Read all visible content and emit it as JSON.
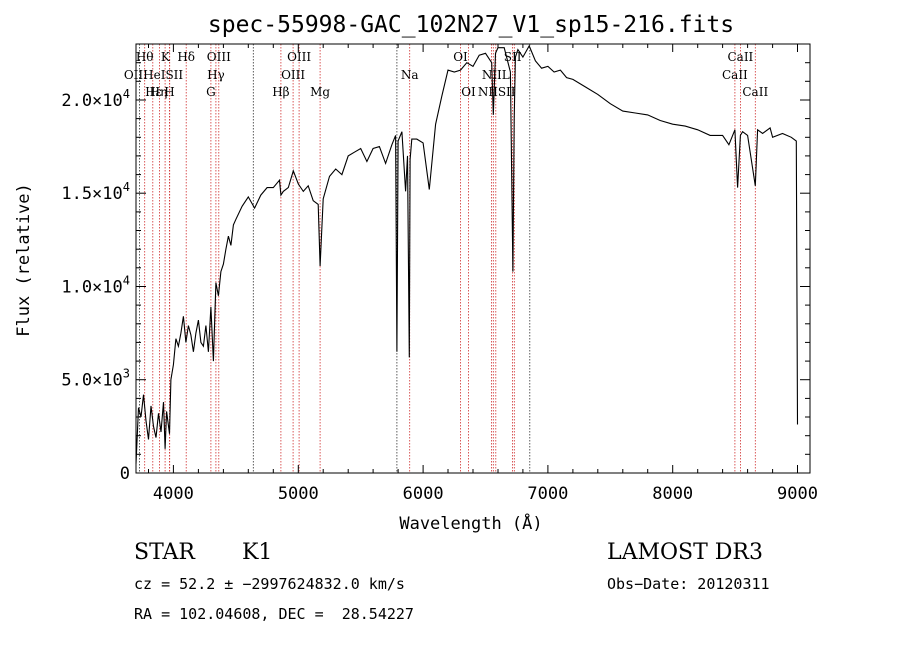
{
  "chart_data": {
    "type": "line",
    "title": "spec-55998-GAC_102N27_V1_sp15-216.fits",
    "xlabel": "Wavelength (Å)",
    "ylabel": "Flux (relative)",
    "xlim": [
      3700,
      9100
    ],
    "ylim": [
      0,
      23000
    ],
    "x_ticks": [
      {
        "value": 4000,
        "label": "4000"
      },
      {
        "value": 5000,
        "label": "5000"
      },
      {
        "value": 6000,
        "label": "6000"
      },
      {
        "value": 7000,
        "label": "7000"
      },
      {
        "value": 8000,
        "label": "8000"
      },
      {
        "value": 9000,
        "label": "9000"
      }
    ],
    "y_ticks": [
      {
        "value": 0,
        "mant": "0",
        "exp": ""
      },
      {
        "value": 5000,
        "mant": "5.0×10",
        "exp": "3"
      },
      {
        "value": 10000,
        "mant": "1.0×10",
        "exp": "4"
      },
      {
        "value": 15000,
        "mant": "1.5×10",
        "exp": "4"
      },
      {
        "value": 20000,
        "mant": "2.0×10",
        "exp": "4"
      }
    ],
    "series": [
      {
        "name": "spectrum",
        "x": [
          3700,
          3720,
          3740,
          3760,
          3780,
          3800,
          3820,
          3840,
          3860,
          3880,
          3900,
          3920,
          3933,
          3945,
          3968,
          3980,
          4000,
          4020,
          4040,
          4060,
          4080,
          4100,
          4120,
          4140,
          4160,
          4180,
          4200,
          4220,
          4240,
          4260,
          4280,
          4300,
          4320,
          4340,
          4360,
          4380,
          4400,
          4420,
          4440,
          4460,
          4480,
          4500,
          4550,
          4600,
          4650,
          4700,
          4750,
          4800,
          4850,
          4861,
          4880,
          4920,
          4960,
          5000,
          5040,
          5080,
          5120,
          5160,
          5175,
          5200,
          5250,
          5300,
          5350,
          5400,
          5450,
          5500,
          5550,
          5600,
          5650,
          5700,
          5750,
          5780,
          5790,
          5800,
          5830,
          5860,
          5875,
          5890,
          5896,
          5910,
          5950,
          6000,
          6050,
          6100,
          6150,
          6200,
          6250,
          6300,
          6350,
          6400,
          6450,
          6500,
          6550,
          6563,
          6580,
          6600,
          6650,
          6700,
          6720,
          6730,
          6740,
          6760,
          6800,
          6850,
          6900,
          6950,
          7000,
          7050,
          7100,
          7150,
          7200,
          7300,
          7400,
          7500,
          7600,
          7700,
          7800,
          7900,
          8000,
          8100,
          8200,
          8300,
          8400,
          8450,
          8498,
          8520,
          8542,
          8560,
          8600,
          8662,
          8680,
          8720,
          8780,
          8800,
          8880,
          8950,
          8990,
          9000
        ],
        "y": [
          500,
          3500,
          3000,
          4200,
          2800,
          1800,
          3600,
          2500,
          1900,
          3200,
          2200,
          3800,
          1300,
          3300,
          2100,
          5000,
          5800,
          7200,
          6800,
          7500,
          8400,
          7000,
          7900,
          7400,
          6500,
          7500,
          8200,
          7000,
          6800,
          7900,
          6500,
          8900,
          6000,
          10200,
          9500,
          10800,
          11200,
          12000,
          12700,
          12200,
          13300,
          13600,
          14300,
          14800,
          14200,
          14900,
          15300,
          15300,
          15700,
          14900,
          15100,
          15300,
          16200,
          15500,
          15100,
          15400,
          14600,
          14400,
          11100,
          14700,
          15900,
          16300,
          16000,
          17000,
          17200,
          17400,
          16700,
          17400,
          17500,
          16600,
          17600,
          18100,
          6500,
          17800,
          18300,
          15100,
          17000,
          6200,
          16800,
          17900,
          17900,
          17700,
          15200,
          18700,
          20200,
          21600,
          21500,
          21600,
          22000,
          21800,
          22400,
          22500,
          22000,
          19200,
          22500,
          22800,
          22800,
          21500,
          10800,
          19000,
          22300,
          22700,
          22300,
          22900,
          22100,
          21700,
          21800,
          21500,
          21600,
          21200,
          21100,
          20700,
          20300,
          19800,
          19400,
          19300,
          19200,
          18900,
          18700,
          18600,
          18400,
          18100,
          18100,
          17600,
          18400,
          15300,
          18100,
          18300,
          18100,
          15400,
          18400,
          18200,
          18500,
          18000,
          18200,
          18000,
          17800,
          2600
        ]
      }
    ],
    "lines_red": [
      3770,
      3835,
      3889,
      3933,
      3968,
      3970,
      4102,
      4300,
      4340,
      4363,
      4861,
      4959,
      5007,
      5175,
      5893,
      6300,
      6364,
      6548,
      6563,
      6583,
      6717,
      6731,
      8498,
      8542,
      8662
    ],
    "lines_black": [
      3727,
      4640,
      5790,
      6855
    ],
    "line_labels": [
      {
        "text": "Hθ",
        "x": 3770,
        "row": 1
      },
      {
        "text": "K",
        "x": 3935,
        "row": 1
      },
      {
        "text": "Hδ",
        "x": 4102,
        "row": 1
      },
      {
        "text": "OIII",
        "x": 4363,
        "row": 1
      },
      {
        "text": "OIII",
        "x": 5007,
        "row": 1
      },
      {
        "text": "OI",
        "x": 6300,
        "row": 1
      },
      {
        "text": "SII",
        "x": 6717,
        "row": 1
      },
      {
        "text": "CaII",
        "x": 8542,
        "row": 1
      },
      {
        "text": "OIIHeISII",
        "x": 3840,
        "row": 2
      },
      {
        "text": "Hγ",
        "x": 4340,
        "row": 2
      },
      {
        "text": "OIII",
        "x": 4959,
        "row": 2
      },
      {
        "text": "Na",
        "x": 5893,
        "row": 2
      },
      {
        "text": "NIIL",
        "x": 6583,
        "row": 2
      },
      {
        "text": "CaII",
        "x": 8498,
        "row": 2
      },
      {
        "text": "Hε",
        "x": 3840,
        "row": 3
      },
      {
        "text": "Hη",
        "x": 3880,
        "row": 3
      },
      {
        "text": "H",
        "x": 3968,
        "row": 3
      },
      {
        "text": "G",
        "x": 4300,
        "row": 3
      },
      {
        "text": "Hβ",
        "x": 4861,
        "row": 3
      },
      {
        "text": "Mg",
        "x": 5175,
        "row": 3
      },
      {
        "text": "OI",
        "x": 6364,
        "row": 3
      },
      {
        "text": "NIISII",
        "x": 6590,
        "row": 3
      },
      {
        "text": "CaII",
        "x": 8662,
        "row": 3
      }
    ]
  },
  "info": {
    "star_class": "STAR",
    "subclass": "K1",
    "survey": "LAMOST DR3",
    "cz": "cz = 52.2 ± −2997624832.0 km/s",
    "obs_date": "Obs−Date: 20120311",
    "radec": "RA = 102.04608, DEC =  28.54227"
  }
}
